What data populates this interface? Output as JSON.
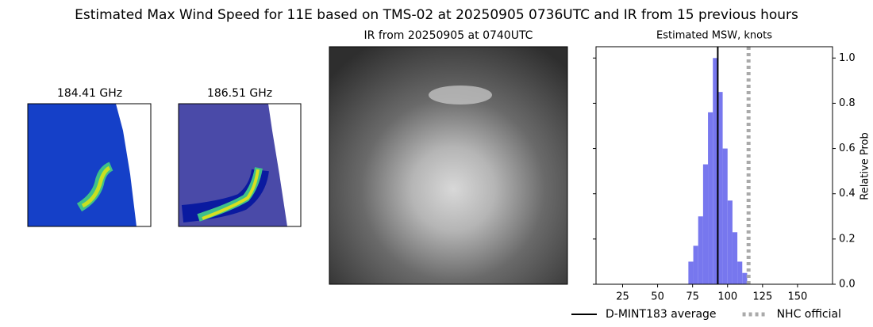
{
  "title": "Estimated Max Wind Speed for 11E based on TMS-02 at 20250905 0736UTC and IR from 15 previous hours",
  "panels": [
    {
      "title": "184.41 GHz"
    },
    {
      "title": "186.51 GHz"
    },
    {
      "title": "IR from 20250905 at 0740UTC"
    }
  ],
  "chart_data": {
    "type": "histogram",
    "title": "Estimated MSW, knots",
    "ylabel": "Relative Prob",
    "bins": [
      72,
      75.5,
      79,
      82.5,
      86,
      89.5,
      93,
      96.5,
      100,
      103.5,
      107,
      110.5,
      114
    ],
    "values": [
      0.1,
      0.17,
      0.3,
      0.53,
      0.76,
      1.0,
      0.85,
      0.6,
      0.37,
      0.23,
      0.1,
      0.05
    ],
    "color": "#7777ee",
    "xlim": [
      6,
      175
    ],
    "xticks": [
      25,
      50,
      75,
      100,
      125,
      150
    ],
    "ylim": [
      0,
      1.05
    ],
    "yticks": [
      {
        "value": 0,
        "label": "0.0"
      },
      {
        "value": 0.2,
        "label": "0.2"
      },
      {
        "value": 0.4,
        "label": "0.4"
      },
      {
        "value": 0.6,
        "label": "0.6"
      },
      {
        "value": 0.8,
        "label": "0.8"
      },
      {
        "value": 1.0,
        "label": "1.0"
      }
    ],
    "lines": [
      {
        "name": "D-MINT183 average",
        "value": 93,
        "color": "#000000",
        "style": "solid"
      },
      {
        "name": "NHC official",
        "value": 115,
        "color": "#aaaaaa",
        "style": "dotted"
      }
    ]
  }
}
